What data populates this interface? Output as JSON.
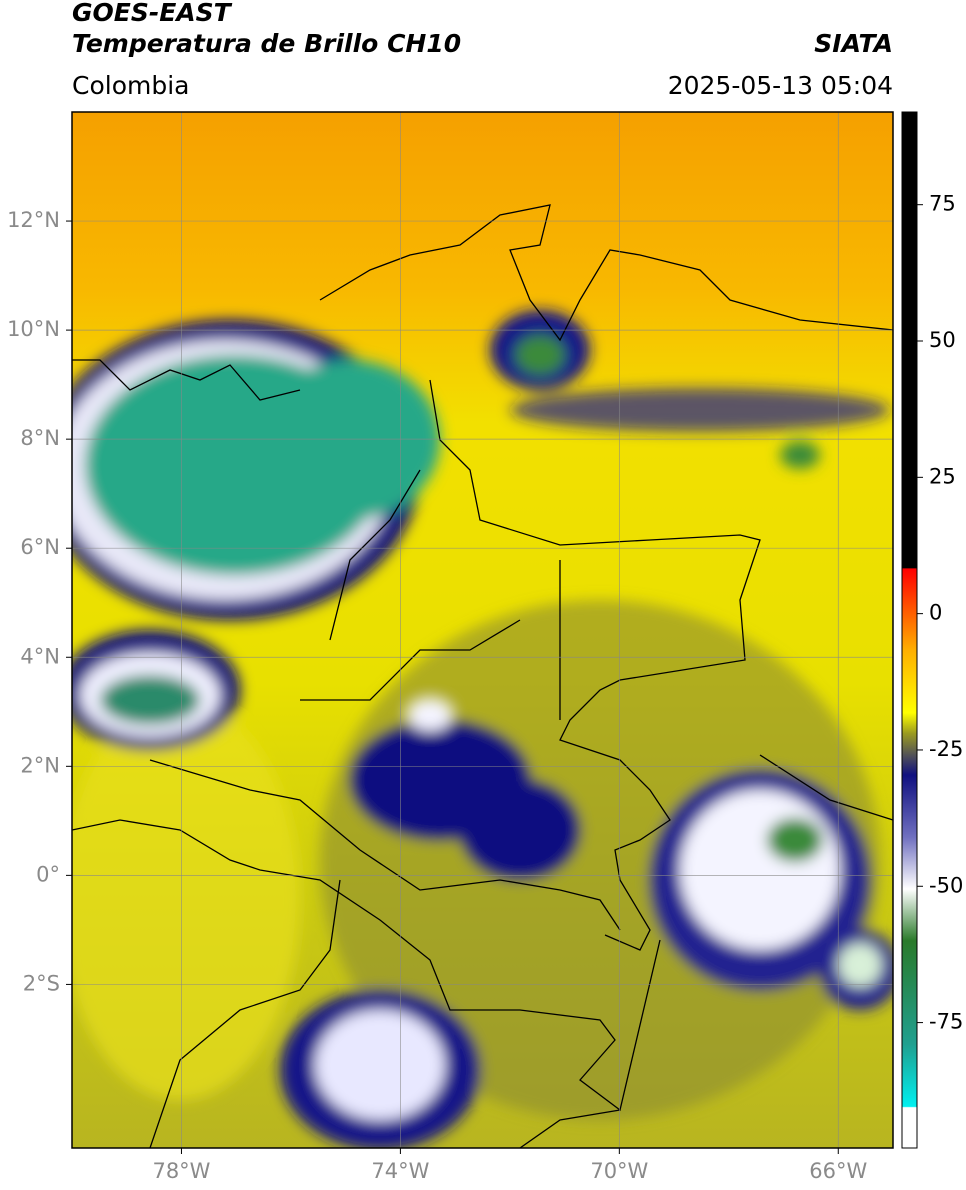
{
  "header": {
    "satellite": "GOES-EAST",
    "product": "Temperatura de Brillo CH10",
    "region": "Colombia",
    "source": "SIATA",
    "datetime": "2025-05-13 05:04"
  },
  "map": {
    "lon_lim": [
      -80,
      -65
    ],
    "lat_lim": [
      -5,
      14
    ],
    "lat_ticks": [
      {
        "value": 12,
        "label": "12°N"
      },
      {
        "value": 10,
        "label": "10°N"
      },
      {
        "value": 8,
        "label": "8°N"
      },
      {
        "value": 6,
        "label": "6°N"
      },
      {
        "value": 4,
        "label": "4°N"
      },
      {
        "value": 2,
        "label": "2°N"
      },
      {
        "value": 0,
        "label": "0°"
      },
      {
        "value": -2,
        "label": "2°S"
      }
    ],
    "lon_ticks": [
      {
        "value": -78,
        "label": "78°W"
      },
      {
        "value": -74,
        "label": "74°W"
      },
      {
        "value": -70,
        "label": "70°W"
      },
      {
        "value": -66,
        "label": "66°W"
      }
    ]
  },
  "colorbar": {
    "lim": [
      -98,
      92
    ],
    "ticks": [
      75,
      50,
      25,
      0,
      -25,
      -50,
      -75
    ]
  }
}
